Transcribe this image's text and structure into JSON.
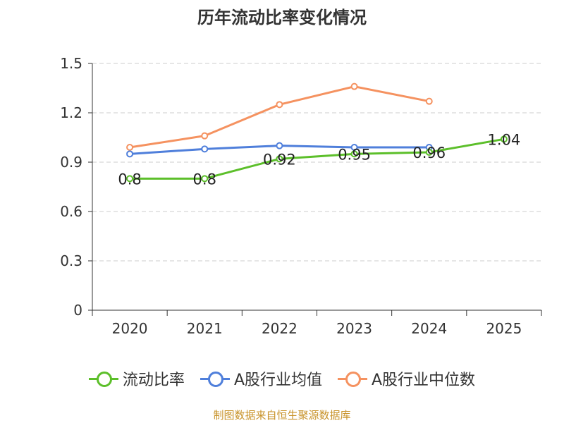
{
  "chart_data": {
    "type": "line",
    "title": "历年流动比率变化情况",
    "categories": [
      "2020",
      "2021",
      "2022",
      "2023",
      "2024",
      "2025"
    ],
    "ylim": [
      0,
      1.5
    ],
    "yticks": [
      "0",
      "0.3",
      "0.6",
      "0.9",
      "1.2",
      "1.5"
    ],
    "grid": true,
    "legend_position": "bottom",
    "series": [
      {
        "name": "流动比率",
        "color": "#5cbf2a",
        "values": [
          0.8,
          0.8,
          0.92,
          0.95,
          0.96,
          1.04
        ],
        "labels": [
          "0.8",
          "0.8",
          "0.92",
          "0.95",
          "0.96",
          "1.04"
        ]
      },
      {
        "name": "A股行业均值",
        "color": "#4f7fdb",
        "values": [
          0.95,
          0.98,
          1.0,
          0.99,
          0.99,
          null
        ]
      },
      {
        "name": "A股行业中位数",
        "color": "#f59260",
        "values": [
          0.99,
          1.06,
          1.25,
          1.36,
          1.27,
          null
        ]
      }
    ],
    "source": "制图数据来自恒生聚源数据库"
  }
}
